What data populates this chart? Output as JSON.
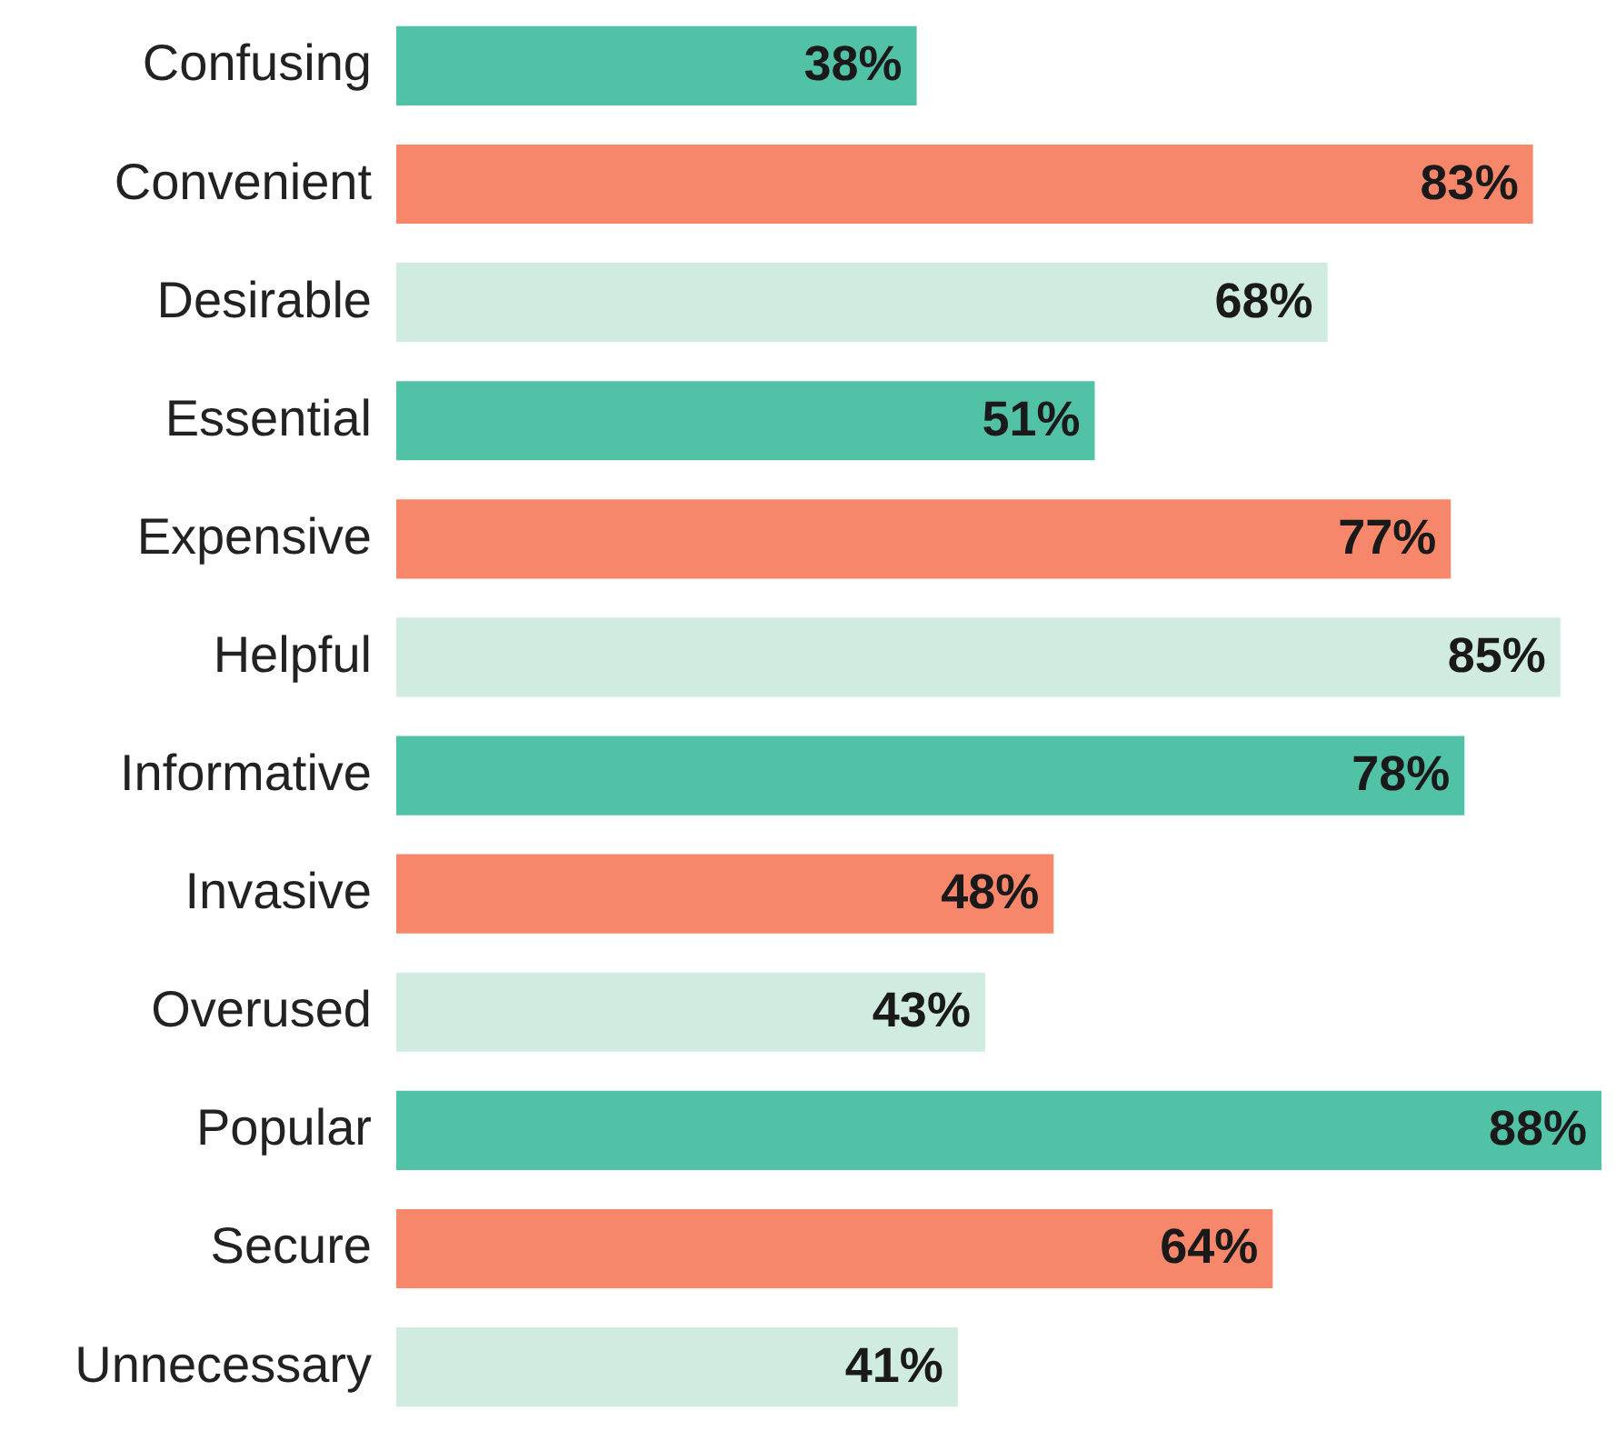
{
  "chart_data": {
    "type": "bar",
    "orientation": "horizontal",
    "categories": [
      "Confusing",
      "Convenient",
      "Desirable",
      "Essential",
      "Expensive",
      "Helpful",
      "Informative",
      "Invasive",
      "Overused",
      "Popular",
      "Secure",
      "Unnecessary"
    ],
    "values": [
      38,
      83,
      68,
      51,
      77,
      85,
      78,
      48,
      43,
      88,
      64,
      41
    ],
    "value_labels": [
      "38%",
      "83%",
      "68%",
      "51%",
      "77%",
      "85%",
      "78%",
      "48%",
      "43%",
      "88%",
      "64%",
      "41%"
    ],
    "colors": [
      "#52c2a7",
      "#f7876b",
      "#d0ebdf",
      "#52c2a7",
      "#f7876b",
      "#d0ebdf",
      "#52c2a7",
      "#f7876b",
      "#d0ebdf",
      "#52c2a7",
      "#f7876b",
      "#d0ebdf"
    ]
  }
}
